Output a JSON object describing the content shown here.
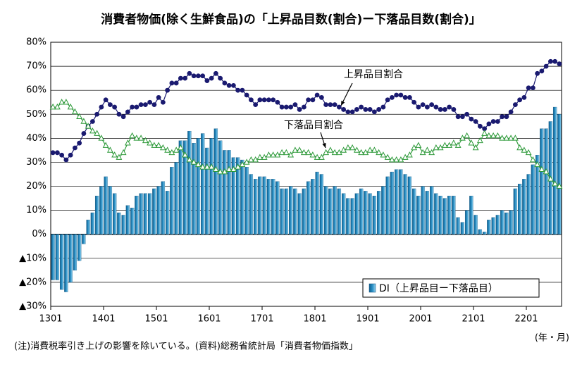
{
  "chart_data": {
    "type": "combo",
    "title": "消費者物価(除く生鮮食品)の「上昇品目数(割合)ー下落品目数(割合)」",
    "x_unit_label": "(年・月)",
    "note": "(注)消費税率引き上げの影響を除いている。(資料)総務省統計局「消費者物価指数」",
    "categories": [
      "1301",
      null,
      null,
      null,
      null,
      null,
      null,
      null,
      null,
      null,
      null,
      null,
      "1401",
      null,
      null,
      null,
      null,
      null,
      null,
      null,
      null,
      null,
      null,
      null,
      "1501",
      null,
      null,
      null,
      null,
      null,
      null,
      null,
      null,
      null,
      null,
      null,
      "1601",
      null,
      null,
      null,
      null,
      null,
      null,
      null,
      null,
      null,
      null,
      null,
      "1701",
      null,
      null,
      null,
      null,
      null,
      null,
      null,
      null,
      null,
      null,
      null,
      "1801",
      null,
      null,
      null,
      null,
      null,
      null,
      null,
      null,
      null,
      null,
      null,
      "1901",
      null,
      null,
      null,
      null,
      null,
      null,
      null,
      null,
      null,
      null,
      null,
      "2001",
      null,
      null,
      null,
      null,
      null,
      null,
      null,
      null,
      null,
      null,
      null,
      "2101",
      null,
      null,
      null,
      null,
      null,
      null,
      null,
      null,
      null,
      null,
      null,
      "2201",
      null,
      null,
      null,
      null,
      null,
      null,
      null
    ],
    "series": [
      {
        "name": "DI（上昇品目ー下落品目）",
        "type": "bar",
        "color": "#2b8fc4",
        "values": [
          -19,
          -19,
          -23,
          -24,
          -20,
          -15,
          -11,
          -4,
          6,
          9,
          16,
          20,
          24,
          20,
          17,
          9,
          8,
          12,
          11,
          16,
          17,
          17,
          17,
          19,
          20,
          22,
          18,
          28,
          30,
          39,
          39,
          43,
          38,
          40,
          42,
          36,
          40,
          44,
          39,
          35,
          35,
          32,
          32,
          31,
          28,
          25,
          23,
          24,
          24,
          23,
          23,
          22,
          19,
          19,
          20,
          19,
          17,
          19,
          22,
          23,
          26,
          25,
          20,
          19,
          20,
          19,
          17,
          15,
          15,
          17,
          19,
          18,
          17,
          16,
          18,
          20,
          24,
          26,
          27,
          27,
          25,
          24,
          19,
          16,
          20,
          18,
          20,
          17,
          16,
          15,
          16,
          16,
          7,
          5,
          10,
          16,
          8,
          2,
          1,
          6,
          7,
          8,
          10,
          9,
          10,
          19,
          21,
          23,
          25,
          29,
          33,
          44,
          44,
          47,
          53,
          50
        ]
      },
      {
        "name": "上昇品目割合",
        "type": "line",
        "marker": "circle",
        "color": "#1a1a70",
        "values": [
          34,
          34,
          33,
          31,
          33,
          36,
          38,
          42,
          45,
          47,
          50,
          53,
          56,
          54,
          53,
          50,
          49,
          51,
          53,
          53,
          54,
          54,
          55,
          54,
          57,
          55,
          60,
          63,
          63,
          65,
          65,
          67,
          66,
          66,
          66,
          64,
          65,
          67,
          65,
          63,
          62,
          62,
          60,
          60,
          58,
          56,
          54,
          56,
          56,
          56,
          56,
          55,
          53,
          53,
          53,
          54,
          52,
          53,
          56,
          56,
          58,
          57,
          54,
          54,
          54,
          53,
          52,
          51,
          51,
          52,
          53,
          52,
          52,
          51,
          52,
          53,
          56,
          57,
          58,
          58,
          57,
          57,
          55,
          53,
          54,
          53,
          54,
          53,
          52,
          52,
          53,
          52,
          49,
          49,
          50,
          48,
          47,
          45,
          44,
          46,
          47,
          47,
          49,
          49,
          51,
          54,
          56,
          57,
          61,
          61,
          67,
          68,
          70,
          72,
          72,
          71
        ]
      },
      {
        "name": "下落品目割合",
        "type": "line",
        "marker": "triangle",
        "color": "#2e9a3a",
        "values": [
          53,
          53,
          55,
          55,
          53,
          51,
          49,
          47,
          45,
          43,
          42,
          40,
          37,
          35,
          33,
          32,
          34,
          38,
          41,
          40,
          40,
          39,
          38,
          37,
          37,
          36,
          35,
          34,
          35,
          36,
          33,
          31,
          30,
          29,
          28,
          28,
          28,
          27,
          26,
          26,
          27,
          27,
          28,
          29,
          30,
          31,
          31,
          32,
          32,
          33,
          33,
          33,
          34,
          34,
          33,
          35,
          35,
          34,
          34,
          33,
          32,
          32,
          34,
          35,
          34,
          34,
          35,
          36,
          36,
          35,
          34,
          34,
          35,
          35,
          34,
          33,
          32,
          31,
          31,
          31,
          32,
          33,
          36,
          37,
          34,
          35,
          34,
          36,
          36,
          37,
          37,
          38,
          37,
          40,
          41,
          38,
          36,
          39,
          42,
          41,
          41,
          41,
          40,
          40,
          40,
          40,
          36,
          35,
          34,
          31,
          29,
          27,
          26,
          23,
          21,
          20
        ]
      }
    ],
    "ylim": [
      -30,
      80
    ],
    "yticks": [
      {
        "value": 80,
        "label": "80%"
      },
      {
        "value": 70,
        "label": "70%"
      },
      {
        "value": 60,
        "label": "60%"
      },
      {
        "value": 50,
        "label": "50%"
      },
      {
        "value": 40,
        "label": "40%"
      },
      {
        "value": 30,
        "label": "30%"
      },
      {
        "value": 20,
        "label": "20%"
      },
      {
        "value": 10,
        "label": "10%"
      },
      {
        "value": 0,
        "label": "0%"
      },
      {
        "value": -10,
        "label": "▲10%"
      },
      {
        "value": -20,
        "label": "▲20%"
      },
      {
        "value": -30,
        "label": "▲30%"
      }
    ],
    "grid": true
  }
}
